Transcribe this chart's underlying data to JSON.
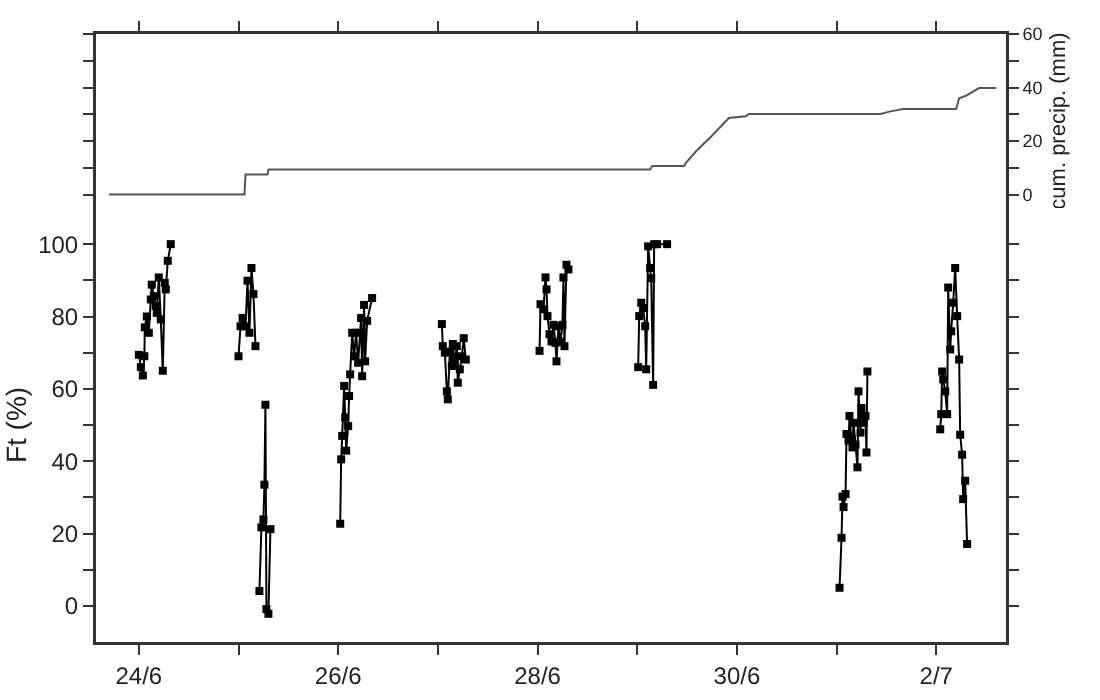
{
  "chart_data": [
    {
      "type": "line",
      "ylabel": "cum. precip. (mm)",
      "tick_labels": "y",
      "xlim": [
        "--06-23T13:41",
        "--07-02T16:48"
      ],
      "xticks": [
        {
          "value": "--06-24",
          "label": null
        },
        {
          "value": "--06-25",
          "label": null
        },
        {
          "value": "--06-26",
          "label": null
        },
        {
          "value": "--06-27",
          "label": null
        },
        {
          "value": "--06-28",
          "label": null
        },
        {
          "value": "--06-29",
          "label": null
        },
        {
          "value": "--06-30",
          "label": null
        },
        {
          "value": "--07-01",
          "label": null
        },
        {
          "value": "--07-02",
          "label": null
        }
      ],
      "ylim": [
        -5,
        60
      ],
      "yticks": [
        0,
        {
          "value": 10,
          "label": null
        },
        20,
        {
          "value": 30,
          "label": null
        },
        40,
        {
          "value": 50,
          "label": null
        },
        60
      ],
      "series": [
        {
          "color": "#555555",
          "x": [
            "--06-23T16:48",
            "--06-25T01:26",
            "--06-25T01:41",
            "--06-25T06:58",
            "--06-25T07:12",
            "--06-29T03:07",
            "--06-29T03:36",
            "--06-29T11:17",
            "--06-29T11:46",
            "--06-29T14:10",
            "--06-29T18:00",
            "--06-29T22:05",
            "--06-30T02:10",
            "--06-30T02:53",
            "--07-01T10:34",
            "--07-01T12:58",
            "--07-01T16:05",
            "--07-02T04:48",
            "--07-02T05:31",
            "--07-02T07:12",
            "--07-02T10:19",
            "--07-02T14:24"
          ],
          "values": [
            0,
            0,
            7.5,
            7.5,
            9.4,
            9.4,
            10.7,
            10.7,
            12,
            16.2,
            22,
            28.6,
            29.3,
            30.1,
            30.1,
            31.1,
            32,
            32,
            36,
            37,
            39.8,
            39.8
          ]
        }
      ]
    },
    {
      "type": "line",
      "ylabel": "Ft (%)",
      "marker": "square",
      "xlim": [
        "--06-23T13:41",
        "--07-02T16:48"
      ],
      "xticks": [
        {
          "value": "--06-24",
          "label": "24/6"
        },
        {
          "value": "--06-25",
          "label": null
        },
        {
          "value": "--06-26",
          "label": "26/6"
        },
        {
          "value": "--06-27",
          "label": null
        },
        {
          "value": "--06-28",
          "label": "28/6"
        },
        {
          "value": "--06-29",
          "label": null
        },
        {
          "value": "--06-30",
          "label": "30/6"
        },
        {
          "value": "--07-01",
          "label": null
        },
        {
          "value": "--07-02",
          "label": "2/7"
        }
      ],
      "ylim": [
        -10,
        110
      ],
      "yticks": [
        0,
        {
          "value": 10,
          "label": null
        },
        20,
        {
          "value": 30,
          "label": null
        },
        40,
        {
          "value": 50,
          "label": null
        },
        60,
        {
          "value": 70,
          "label": null
        },
        80,
        {
          "value": 90,
          "label": null
        },
        100
      ],
      "series": [
        {
          "color": "#000000",
          "x": [
            "--06-24T00:00",
            "--06-24T00:29",
            "--06-24T00:58",
            "--06-24T01:20",
            "--06-24T01:26",
            "--06-24T01:55",
            "--06-24T02:24",
            "--06-24T02:53",
            "--06-24T03:07",
            "--06-24T03:36",
            "--06-24T04:05",
            "--06-24T04:19",
            "--06-24T04:48",
            "--06-24T05:17",
            "--06-24T05:46",
            "--06-24T06:14",
            "--06-24T06:29",
            "--06-24T06:58",
            "--06-24T07:41",
            "--06-24T14:24",
            "--06-25T00:00",
            "--06-25T00:29",
            "--06-25T00:58",
            "--06-25T01:41",
            "--06-25T02:10",
            "--06-25T02:38",
            "--06-25T03:07",
            "--06-25T03:36",
            "--06-25T04:05",
            "--06-25T04:34",
            "--06-25T05:02",
            "--06-25T05:31",
            "--06-25T06:00",
            "--06-25T06:14",
            "--06-25T06:29",
            "--06-25T06:43",
            "--06-25T07:12",
            "--06-25T07:41",
            "--06-25T14:24",
            "--06-26T00:29",
            "--06-26T00:43",
            "--06-26T00:58",
            "--06-26T01:26",
            "--06-26T01:41",
            "--06-26T01:55",
            "--06-26T02:24",
            "--06-26T02:38",
            "--06-26T02:53",
            "--06-26T03:22",
            "--06-26T03:50",
            "--06-26T04:19",
            "--06-26T04:48",
            "--06-26T05:17",
            "--06-26T05:31",
            "--06-26T05:46",
            "--06-26T06:14",
            "--06-26T06:29",
            "--06-26T06:58",
            "--06-26T08:10",
            "--06-26T16:48",
            "--06-27T00:58",
            "--06-27T01:12",
            "--06-27T01:41",
            "--06-27T02:10",
            "--06-27T02:24",
            "--06-27T02:53",
            "--06-27T03:22",
            "--06-27T03:36",
            "--06-27T04:05",
            "--06-27T04:34",
            "--06-27T04:48",
            "--06-27T05:17",
            "--06-27T05:46",
            "--06-27T06:14",
            "--06-27T06:43",
            "--06-27T14:24",
            "--06-28T00:29",
            "--06-28T00:43",
            "--06-28T01:26",
            "--06-28T01:55",
            "--06-28T02:10",
            "--06-28T02:24",
            "--06-28T02:53",
            "--06-28T03:22",
            "--06-28T03:50",
            "--06-28T04:19",
            "--06-28T04:34",
            "--06-28T05:02",
            "--06-28T05:31",
            "--06-28T06:00",
            "--06-28T06:14",
            "--06-28T06:29",
            "--06-28T06:58",
            "--06-28T07:26",
            "--06-28T14:24",
            "--06-29T00:14",
            "--06-29T00:29",
            "--06-29T00:58",
            "--06-29T01:26",
            "--06-29T01:55",
            "--06-29T02:10",
            "--06-29T02:38",
            "--06-29T03:07",
            "--06-29T03:22",
            "--06-29T03:50",
            "--06-29T04:05",
            "--06-29T04:48",
            "--06-29T07:12",
            "--06-30T04:48",
            "--07-01T00:43",
            "--07-01T01:12",
            "--07-01T01:26",
            "--07-01T01:41",
            "--07-01T02:10",
            "--07-01T02:24",
            "--07-01T02:53",
            "--07-01T03:07",
            "--07-01T03:36",
            "--07-01T03:50",
            "--07-01T04:05",
            "--07-01T04:34",
            "--07-01T05:02",
            "--07-01T05:17",
            "--07-01T05:46",
            "--07-01T06:00",
            "--07-01T06:29",
            "--07-01T06:58",
            "--07-01T07:12",
            "--07-01T07:26",
            "--07-01T16:48",
            "--07-02T00:58",
            "--07-02T01:12",
            "--07-02T01:26",
            "--07-02T01:41",
            "--07-02T02:10",
            "--07-02T02:38",
            "--07-02T02:53",
            "--07-02T03:22",
            "--07-02T03:36",
            "--07-02T04:05",
            "--07-02T04:34",
            "--07-02T05:02",
            "--07-02T05:31",
            "--07-02T05:46",
            "--07-02T06:14",
            "--07-02T06:29",
            "--07-02T06:58",
            "--07-02T07:26"
          ],
          "values": [
            69.4,
            66,
            63.7,
            69,
            77,
            80,
            75.5,
            84.7,
            88.8,
            85.6,
            82.9,
            81,
            90.8,
            79.2,
            65,
            89.3,
            87.5,
            95.4,
            100,
            null,
            69,
            77.3,
            79.6,
            77.3,
            89.9,
            75.5,
            93.4,
            86.2,
            71.8,
            null,
            4.1,
            21.7,
            23.9,
            33.5,
            55.6,
            -0.9,
            -2.2,
            21.2,
            null,
            22.7,
            40.5,
            47,
            60.8,
            52.1,
            42.9,
            49.7,
            58,
            64,
            75.5,
            69,
            75.5,
            67.2,
            75.5,
            79.6,
            63.5,
            83.2,
            67.6,
            78.8,
            85.1,
            null,
            77.9,
            71.8,
            70,
            59.3,
            57.1,
            70.3,
            66.3,
            72.4,
            67.2,
            71.8,
            61.7,
            65.4,
            69,
            74,
            68.1,
            null,
            70.5,
            83.4,
            82,
            90.8,
            87.5,
            80.1,
            75.1,
            73.1,
            77.7,
            72.7,
            67.6,
            77.3,
            73.1,
            77.7,
            90.8,
            71.8,
            94.3,
            93,
            null,
            66,
            80.1,
            83.8,
            82.3,
            77.3,
            65.4,
            99.4,
            93.4,
            90.6,
            61.1,
            100,
            100,
            100,
            null,
            5,
            18.8,
            30.2,
            27.3,
            30.9,
            47.5,
            45.7,
            52.5,
            46,
            43.8,
            50.6,
            44.6,
            38.3,
            59.3,
            47.9,
            54.7,
            50.6,
            52.5,
            42.4,
            64.8,
            null,
            48.8,
            53,
            64.8,
            62.6,
            59.3,
            53,
            88,
            70.9,
            75.9,
            83.8,
            93.4,
            80.1,
            68.1,
            47.3,
            41.8,
            29.5,
            34.6,
            17.1
          ]
        }
      ]
    }
  ]
}
